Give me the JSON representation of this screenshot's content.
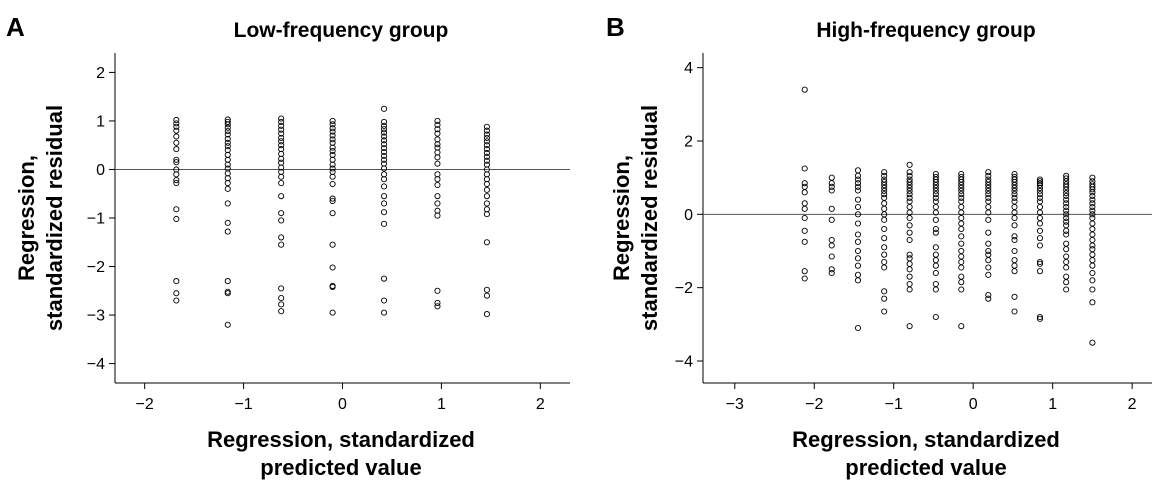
{
  "chart_data": [
    {
      "type": "scatter",
      "panel_label": "A",
      "title": "Low-frequency group",
      "xlabel": [
        "Regression, standardized",
        "predicted value"
      ],
      "ylabel": [
        "Regression,",
        "standardized residual"
      ],
      "xlim": [
        -2.3,
        2.3
      ],
      "ylim": [
        -4.4,
        2.4
      ],
      "xticks": [
        -2,
        -1,
        0,
        1,
        2
      ],
      "xtick_labels": [
        "−2",
        "−1",
        "0",
        "1",
        "2"
      ],
      "yticks": [
        -4,
        -3,
        -2,
        -1,
        0,
        1,
        2
      ],
      "ytick_labels": [
        "−4",
        "−3",
        "−2",
        "−1",
        "0",
        "1",
        "2"
      ],
      "reference_line_y": 0,
      "grid": false,
      "point_style": "open-circle",
      "columns": [
        {
          "x": -1.68,
          "y": [
            1.02,
            0.95,
            0.88,
            0.8,
            0.68,
            0.55,
            0.42,
            0.2,
            0.15,
            0.0,
            -0.1,
            -0.22,
            -0.28,
            -0.82,
            -1.02,
            -2.3,
            -2.55,
            -2.7
          ]
        },
        {
          "x": -1.16,
          "y": [
            1.03,
            0.98,
            0.93,
            0.86,
            0.79,
            0.72,
            0.63,
            0.55,
            0.48,
            0.4,
            0.3,
            0.2,
            0.1,
            0.02,
            -0.08,
            -0.18,
            -0.28,
            -0.4,
            -0.7,
            -1.1,
            -1.28,
            -2.3,
            -2.52,
            -2.55,
            -3.2
          ]
        },
        {
          "x": -0.62,
          "y": [
            1.05,
            0.98,
            0.9,
            0.82,
            0.74,
            0.65,
            0.58,
            0.5,
            0.42,
            0.32,
            0.22,
            0.14,
            0.04,
            -0.05,
            -0.15,
            -0.28,
            -0.55,
            -0.9,
            -1.05,
            -1.4,
            -1.55,
            -2.45,
            -2.65,
            -2.78,
            -2.92
          ]
        },
        {
          "x": -0.1,
          "y": [
            1.0,
            0.93,
            0.85,
            0.78,
            0.7,
            0.62,
            0.55,
            0.45,
            0.38,
            0.3,
            0.2,
            0.1,
            0.02,
            -0.05,
            -0.15,
            -0.3,
            -0.6,
            -0.65,
            -0.9,
            -1.55,
            -2.02,
            -2.4,
            -2.42,
            -2.95
          ]
        },
        {
          "x": 0.42,
          "y": [
            1.25,
            0.98,
            0.9,
            0.83,
            0.76,
            0.68,
            0.6,
            0.52,
            0.44,
            0.36,
            0.28,
            0.2,
            0.12,
            0.02,
            -0.1,
            -0.2,
            -0.35,
            -0.55,
            -0.7,
            -0.88,
            -1.12,
            -2.25,
            -2.7,
            -2.95
          ]
        },
        {
          "x": 0.96,
          "y": [
            1.0,
            0.92,
            0.83,
            0.74,
            0.62,
            0.52,
            0.45,
            0.35,
            0.25,
            0.12,
            -0.1,
            -0.2,
            -0.32,
            -0.55,
            -0.7,
            -0.85,
            -0.95,
            -2.5,
            -2.75,
            -2.82
          ]
        },
        {
          "x": 1.46,
          "y": [
            0.88,
            0.8,
            0.72,
            0.65,
            0.58,
            0.5,
            0.42,
            0.34,
            0.26,
            0.18,
            0.1,
            0.0,
            -0.1,
            -0.2,
            -0.3,
            -0.42,
            -0.55,
            -0.7,
            -0.82,
            -0.92,
            -1.5,
            -2.48,
            -2.6,
            -2.98
          ]
        }
      ]
    },
    {
      "type": "scatter",
      "panel_label": "B",
      "title": "High-frequency group",
      "xlabel": [
        "Regression, standardized",
        "predicted value"
      ],
      "ylabel": [
        "Regression,",
        "standardized residual"
      ],
      "xlim": [
        -3.4,
        2.25
      ],
      "ylim": [
        -4.6,
        4.4
      ],
      "xticks": [
        -3,
        -2,
        -1,
        0,
        1,
        2
      ],
      "xtick_labels": [
        "−3",
        "−2",
        "−1",
        "0",
        "1",
        "2"
      ],
      "yticks": [
        -4,
        -2,
        0,
        2,
        4
      ],
      "ytick_labels": [
        "−4",
        "−2",
        "0",
        "2",
        "4"
      ],
      "reference_line_y": 0,
      "grid": false,
      "point_style": "open-circle",
      "columns": [
        {
          "x": -2.12,
          "y": [
            3.4,
            1.25,
            0.85,
            0.75,
            0.6,
            0.3,
            0.15,
            -0.1,
            -0.45,
            -0.75,
            -1.55,
            -1.75
          ]
        },
        {
          "x": -1.78,
          "y": [
            1.0,
            0.85,
            0.75,
            0.65,
            0.15,
            -0.15,
            -0.7,
            -0.85,
            -1.15,
            -1.5,
            -1.6
          ]
        },
        {
          "x": -1.45,
          "y": [
            1.2,
            1.05,
            0.95,
            0.85,
            0.75,
            0.65,
            0.4,
            0.2,
            0.0,
            -0.25,
            -0.55,
            -0.75,
            -1.0,
            -1.2,
            -1.4,
            -1.65,
            -1.8,
            -3.1
          ]
        },
        {
          "x": -1.12,
          "y": [
            1.15,
            1.05,
            0.95,
            0.88,
            0.8,
            0.72,
            0.64,
            0.55,
            0.45,
            0.3,
            0.15,
            0.0,
            -0.15,
            -0.4,
            -0.65,
            -0.9,
            -1.1,
            -1.3,
            -1.45,
            -2.1,
            -2.3,
            -2.65
          ]
        },
        {
          "x": -0.8,
          "y": [
            1.35,
            1.15,
            1.05,
            0.95,
            0.88,
            0.8,
            0.72,
            0.64,
            0.55,
            0.45,
            0.35,
            0.2,
            0.05,
            -0.1,
            -0.3,
            -0.5,
            -0.7,
            -1.1,
            -1.2,
            -1.35,
            -1.5,
            -1.7,
            -1.9,
            -2.05,
            -3.05
          ]
        },
        {
          "x": -0.47,
          "y": [
            1.1,
            1.02,
            0.95,
            0.88,
            0.8,
            0.72,
            0.64,
            0.55,
            0.45,
            0.35,
            0.2,
            0.05,
            -0.15,
            -0.4,
            -0.5,
            -0.9,
            -1.1,
            -1.25,
            -1.4,
            -1.6,
            -1.9,
            -2.05,
            -2.8
          ]
        },
        {
          "x": -0.15,
          "y": [
            1.1,
            1.02,
            0.95,
            0.88,
            0.8,
            0.72,
            0.64,
            0.55,
            0.45,
            0.35,
            0.2,
            0.05,
            -0.1,
            -0.25,
            -0.4,
            -0.6,
            -0.8,
            -1.0,
            -1.15,
            -1.3,
            -1.45,
            -1.7,
            -1.85,
            -2.05,
            -3.05
          ]
        },
        {
          "x": 0.19,
          "y": [
            1.15,
            1.05,
            0.95,
            0.88,
            0.8,
            0.72,
            0.64,
            0.55,
            0.45,
            0.35,
            0.2,
            0.05,
            -0.15,
            -0.5,
            -0.8,
            -1.0,
            -1.1,
            -1.25,
            -1.45,
            -1.65,
            -2.2,
            -2.3
          ]
        },
        {
          "x": 0.52,
          "y": [
            1.1,
            1.02,
            0.95,
            0.88,
            0.8,
            0.72,
            0.64,
            0.55,
            0.45,
            0.35,
            0.2,
            0.05,
            -0.1,
            -0.3,
            -0.6,
            -0.7,
            -1.0,
            -1.25,
            -1.4,
            -1.55,
            -2.25,
            -2.65
          ]
        },
        {
          "x": 0.84,
          "y": [
            0.95,
            0.9,
            0.85,
            0.8,
            0.72,
            0.64,
            0.55,
            0.45,
            0.35,
            0.2,
            0.05,
            -0.1,
            -0.25,
            -0.45,
            -0.65,
            -0.85,
            -1.3,
            -1.35,
            -1.55,
            -2.8,
            -2.85
          ]
        },
        {
          "x": 1.17,
          "y": [
            1.05,
            0.98,
            0.9,
            0.82,
            0.75,
            0.67,
            0.58,
            0.5,
            0.4,
            0.3,
            0.2,
            0.1,
            0.0,
            -0.1,
            -0.2,
            -0.3,
            -0.45,
            -0.55,
            -0.8,
            -0.95,
            -1.15,
            -1.3,
            -1.45,
            -1.7,
            -1.85,
            -2.05
          ]
        },
        {
          "x": 1.5,
          "y": [
            1.0,
            0.9,
            0.82,
            0.75,
            0.68,
            0.6,
            0.5,
            0.4,
            0.3,
            0.2,
            0.1,
            0.0,
            -0.1,
            -0.25,
            -0.4,
            -0.55,
            -0.7,
            -0.85,
            -0.95,
            -1.1,
            -1.25,
            -1.4,
            -1.6,
            -1.8,
            -2.05,
            -2.4,
            -3.5
          ]
        }
      ]
    }
  ]
}
